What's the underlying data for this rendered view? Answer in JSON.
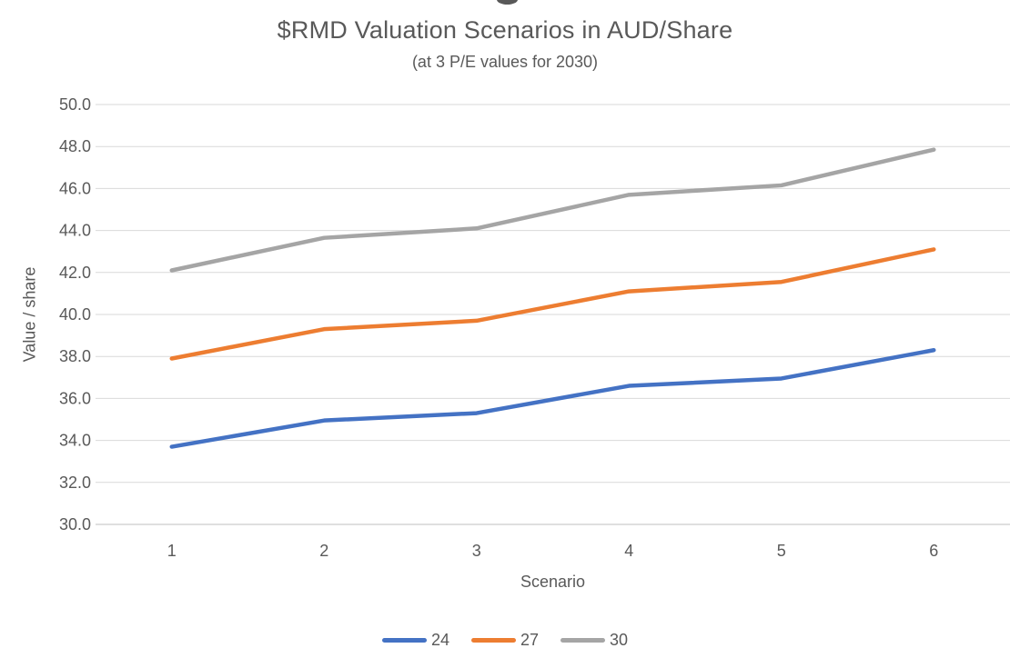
{
  "chart_data": {
    "type": "line",
    "title": "$RMD Valuation Scenarios in AUD/Share",
    "subtitle": "(at 3 P/E values for 2030)",
    "xlabel": "Scenario",
    "ylabel": "Value / share",
    "categories": [
      "1",
      "2",
      "3",
      "4",
      "5",
      "6"
    ],
    "series": [
      {
        "name": "24",
        "color": "#4472C4",
        "values": [
          33.7,
          34.95,
          35.3,
          36.6,
          36.95,
          38.3
        ]
      },
      {
        "name": "27",
        "color": "#ED7D31",
        "values": [
          37.9,
          39.3,
          39.7,
          41.1,
          41.55,
          43.1
        ]
      },
      {
        "name": "30",
        "color": "#A5A5A5",
        "values": [
          42.1,
          43.65,
          44.1,
          45.7,
          46.15,
          47.85
        ]
      }
    ],
    "ylim": [
      30,
      50
    ],
    "ytick_step": 2,
    "y_tick_labels": [
      "30.0",
      "32.0",
      "34.0",
      "36.0",
      "38.0",
      "40.0",
      "42.0",
      "44.0",
      "46.0",
      "48.0",
      "50.0"
    ],
    "grid": true,
    "legend_position": "bottom",
    "grid_color": "#D9D9D9",
    "axis_line_color": "#BFBFBF",
    "text_color": "#595959"
  }
}
